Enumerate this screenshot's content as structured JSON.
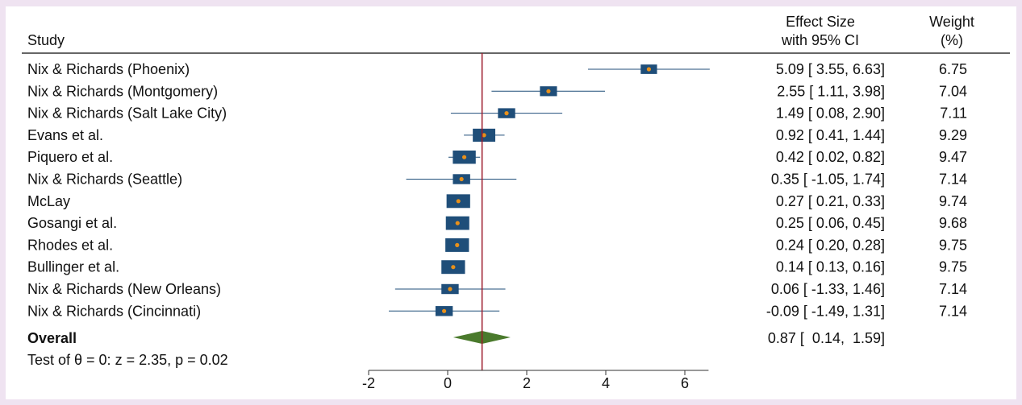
{
  "chart_data": {
    "type": "forest",
    "header": {
      "study": "Study",
      "effect_line1": "Effect Size",
      "effect_line2": "with 95% CI",
      "weight_line1": "Weight",
      "weight_line2": "(%)"
    },
    "studies": [
      {
        "name": "Nix & Richards (Phoenix)",
        "effect": 5.09,
        "lo": 3.55,
        "hi": 6.63,
        "weight": 6.75,
        "ci_text": "5.09 [  3.55,  6.63]",
        "weight_text": "6.75"
      },
      {
        "name": "Nix & Richards (Montgomery)",
        "effect": 2.55,
        "lo": 1.11,
        "hi": 3.98,
        "weight": 7.04,
        "ci_text": "2.55 [  1.11,  3.98]",
        "weight_text": "7.04"
      },
      {
        "name": "Nix & Richards (Salt Lake City)",
        "effect": 1.49,
        "lo": 0.08,
        "hi": 2.9,
        "weight": 7.11,
        "ci_text": "1.49 [  0.08,  2.90]",
        "weight_text": "7.11"
      },
      {
        "name": "Evans et al.",
        "effect": 0.92,
        "lo": 0.41,
        "hi": 1.44,
        "weight": 9.29,
        "ci_text": "0.92 [  0.41,  1.44]",
        "weight_text": "9.29"
      },
      {
        "name": "Piquero et al.",
        "effect": 0.42,
        "lo": 0.02,
        "hi": 0.82,
        "weight": 9.47,
        "ci_text": "0.42 [  0.02,  0.82]",
        "weight_text": "9.47"
      },
      {
        "name": "Nix & Richards (Seattle)",
        "effect": 0.35,
        "lo": -1.05,
        "hi": 1.74,
        "weight": 7.14,
        "ci_text": "0.35 [ -1.05,  1.74]",
        "weight_text": "7.14"
      },
      {
        "name": "McLay",
        "effect": 0.27,
        "lo": 0.21,
        "hi": 0.33,
        "weight": 9.74,
        "ci_text": "0.27 [  0.21,  0.33]",
        "weight_text": "9.74"
      },
      {
        "name": "Gosangi et al.",
        "effect": 0.25,
        "lo": 0.06,
        "hi": 0.45,
        "weight": 9.68,
        "ci_text": "0.25 [  0.06,  0.45]",
        "weight_text": "9.68"
      },
      {
        "name": "Rhodes et al.",
        "effect": 0.24,
        "lo": 0.2,
        "hi": 0.28,
        "weight": 9.75,
        "ci_text": "0.24 [  0.20,  0.28]",
        "weight_text": "9.75"
      },
      {
        "name": "Bullinger et al.",
        "effect": 0.14,
        "lo": 0.13,
        "hi": 0.16,
        "weight": 9.75,
        "ci_text": "0.14 [  0.13,  0.16]",
        "weight_text": "9.75"
      },
      {
        "name": "Nix & Richards (New Orleans)",
        "effect": 0.06,
        "lo": -1.33,
        "hi": 1.46,
        "weight": 7.14,
        "ci_text": "0.06 [ -1.33,  1.46]",
        "weight_text": "7.14"
      },
      {
        "name": "Nix & Richards (Cincinnati)",
        "effect": -0.09,
        "lo": -1.49,
        "hi": 1.31,
        "weight": 7.14,
        "ci_text": "-0.09 [ -1.49,  1.31]",
        "weight_text": "7.14"
      }
    ],
    "overall": {
      "name": "Overall",
      "effect": 0.87,
      "lo": 0.14,
      "hi": 1.59,
      "ci_text": "0.87 [  0.14,  1.59]"
    },
    "test_text": "Test of θ = 0: z = 2.35, p = 0.02",
    "x_ticks": [
      -2,
      0,
      2,
      4,
      6
    ],
    "x_tick_labels": [
      "-2",
      "0",
      "2",
      "4",
      "6"
    ],
    "xlim": [
      -2,
      6.6
    ],
    "reference_line": 0.87,
    "colors": {
      "box": "#1f4e79",
      "point": "#e8901a",
      "ci_line": "#1f4e79",
      "diamond": "#4a7a2c",
      "reference_line": "#9b1a2a",
      "background": "#efe3f1"
    }
  }
}
